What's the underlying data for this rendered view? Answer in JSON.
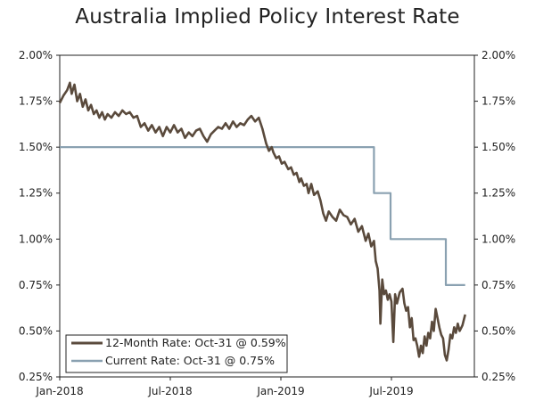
{
  "chart_data": {
    "type": "line",
    "title": "Australia Implied Policy Interest Rate",
    "xlabel": "",
    "ylabel": "",
    "ylim": [
      0.25,
      2.0
    ],
    "y_ticks": [
      "0.25%",
      "0.50%",
      "0.75%",
      "1.00%",
      "1.25%",
      "1.50%",
      "1.75%",
      "2.00%"
    ],
    "y_tick_values": [
      0.25,
      0.5,
      0.75,
      1.0,
      1.25,
      1.5,
      1.75,
      2.0
    ],
    "x_range_months": [
      0,
      22.5
    ],
    "x_ticks": [
      {
        "label": "Jan-2018",
        "month": 0
      },
      {
        "label": "Jul-2018",
        "month": 6
      },
      {
        "label": "Jan-2019",
        "month": 12
      },
      {
        "label": "Jul-2019",
        "month": 18
      }
    ],
    "legend_position": "bottom-left",
    "series": [
      {
        "name": "12-Month Rate: Oct-31 @ 0.59%",
        "color": "#5a4a3c",
        "points": [
          [
            0.0,
            1.74
          ],
          [
            0.2,
            1.78
          ],
          [
            0.4,
            1.81
          ],
          [
            0.55,
            1.85
          ],
          [
            0.65,
            1.79
          ],
          [
            0.8,
            1.84
          ],
          [
            0.95,
            1.75
          ],
          [
            1.1,
            1.79
          ],
          [
            1.25,
            1.72
          ],
          [
            1.4,
            1.76
          ],
          [
            1.55,
            1.7
          ],
          [
            1.7,
            1.73
          ],
          [
            1.85,
            1.68
          ],
          [
            2.0,
            1.7
          ],
          [
            2.15,
            1.66
          ],
          [
            2.3,
            1.69
          ],
          [
            2.45,
            1.65
          ],
          [
            2.6,
            1.68
          ],
          [
            2.8,
            1.66
          ],
          [
            3.0,
            1.69
          ],
          [
            3.2,
            1.67
          ],
          [
            3.4,
            1.7
          ],
          [
            3.6,
            1.68
          ],
          [
            3.8,
            1.69
          ],
          [
            4.0,
            1.66
          ],
          [
            4.2,
            1.67
          ],
          [
            4.4,
            1.61
          ],
          [
            4.6,
            1.63
          ],
          [
            4.8,
            1.59
          ],
          [
            5.0,
            1.62
          ],
          [
            5.2,
            1.58
          ],
          [
            5.4,
            1.61
          ],
          [
            5.6,
            1.56
          ],
          [
            5.8,
            1.61
          ],
          [
            6.0,
            1.58
          ],
          [
            6.2,
            1.62
          ],
          [
            6.4,
            1.58
          ],
          [
            6.6,
            1.6
          ],
          [
            6.8,
            1.55
          ],
          [
            7.0,
            1.58
          ],
          [
            7.2,
            1.56
          ],
          [
            7.4,
            1.59
          ],
          [
            7.6,
            1.6
          ],
          [
            7.8,
            1.56
          ],
          [
            8.0,
            1.53
          ],
          [
            8.2,
            1.57
          ],
          [
            8.4,
            1.59
          ],
          [
            8.6,
            1.61
          ],
          [
            8.8,
            1.6
          ],
          [
            9.0,
            1.63
          ],
          [
            9.2,
            1.6
          ],
          [
            9.4,
            1.64
          ],
          [
            9.6,
            1.61
          ],
          [
            9.8,
            1.63
          ],
          [
            10.0,
            1.62
          ],
          [
            10.2,
            1.65
          ],
          [
            10.4,
            1.67
          ],
          [
            10.6,
            1.64
          ],
          [
            10.8,
            1.66
          ],
          [
            11.0,
            1.6
          ],
          [
            11.1,
            1.56
          ],
          [
            11.2,
            1.52
          ],
          [
            11.35,
            1.48
          ],
          [
            11.5,
            1.5
          ],
          [
            11.6,
            1.47
          ],
          [
            11.75,
            1.44
          ],
          [
            11.9,
            1.45
          ],
          [
            12.05,
            1.41
          ],
          [
            12.2,
            1.42
          ],
          [
            12.4,
            1.38
          ],
          [
            12.55,
            1.39
          ],
          [
            12.7,
            1.35
          ],
          [
            12.85,
            1.36
          ],
          [
            13.0,
            1.31
          ],
          [
            13.1,
            1.33
          ],
          [
            13.25,
            1.29
          ],
          [
            13.4,
            1.3
          ],
          [
            13.5,
            1.25
          ],
          [
            13.65,
            1.3
          ],
          [
            13.8,
            1.24
          ],
          [
            14.0,
            1.26
          ],
          [
            14.15,
            1.21
          ],
          [
            14.3,
            1.14
          ],
          [
            14.45,
            1.1
          ],
          [
            14.6,
            1.15
          ],
          [
            14.8,
            1.12
          ],
          [
            15.0,
            1.1
          ],
          [
            15.2,
            1.16
          ],
          [
            15.4,
            1.13
          ],
          [
            15.6,
            1.12
          ],
          [
            15.8,
            1.08
          ],
          [
            16.0,
            1.11
          ],
          [
            16.2,
            1.04
          ],
          [
            16.4,
            1.07
          ],
          [
            16.6,
            0.99
          ],
          [
            16.75,
            1.03
          ],
          [
            16.9,
            0.96
          ],
          [
            17.05,
            0.99
          ],
          [
            17.15,
            0.88
          ],
          [
            17.25,
            0.84
          ],
          [
            17.35,
            0.72
          ],
          [
            17.4,
            0.54
          ],
          [
            17.5,
            0.78
          ],
          [
            17.6,
            0.7
          ],
          [
            17.7,
            0.72
          ],
          [
            17.8,
            0.67
          ],
          [
            17.9,
            0.7
          ],
          [
            18.0,
            0.66
          ],
          [
            18.1,
            0.44
          ],
          [
            18.2,
            0.7
          ],
          [
            18.3,
            0.65
          ],
          [
            18.45,
            0.71
          ],
          [
            18.6,
            0.73
          ],
          [
            18.7,
            0.65
          ],
          [
            18.8,
            0.61
          ],
          [
            18.9,
            0.63
          ],
          [
            19.0,
            0.52
          ],
          [
            19.1,
            0.57
          ],
          [
            19.2,
            0.45
          ],
          [
            19.3,
            0.46
          ],
          [
            19.4,
            0.42
          ],
          [
            19.5,
            0.36
          ],
          [
            19.6,
            0.42
          ],
          [
            19.7,
            0.38
          ],
          [
            19.8,
            0.47
          ],
          [
            19.9,
            0.42
          ],
          [
            20.0,
            0.49
          ],
          [
            20.1,
            0.46
          ],
          [
            20.2,
            0.55
          ],
          [
            20.3,
            0.5
          ],
          [
            20.4,
            0.62
          ],
          [
            20.5,
            0.57
          ],
          [
            20.6,
            0.52
          ],
          [
            20.7,
            0.48
          ],
          [
            20.8,
            0.46
          ],
          [
            20.9,
            0.37
          ],
          [
            21.0,
            0.34
          ],
          [
            21.1,
            0.4
          ],
          [
            21.2,
            0.48
          ],
          [
            21.3,
            0.46
          ],
          [
            21.4,
            0.52
          ],
          [
            21.5,
            0.49
          ],
          [
            21.6,
            0.54
          ],
          [
            21.7,
            0.5
          ],
          [
            21.85,
            0.53
          ],
          [
            22.0,
            0.59
          ]
        ]
      },
      {
        "name": "Current Rate: Oct-31 @ 0.75%",
        "color": "#8aa1b1",
        "points": [
          [
            0.0,
            1.5
          ],
          [
            17.05,
            1.5
          ],
          [
            17.05,
            1.25
          ],
          [
            17.95,
            1.25
          ],
          [
            17.95,
            1.0
          ],
          [
            20.95,
            1.0
          ],
          [
            20.95,
            0.75
          ],
          [
            22.0,
            0.75
          ]
        ]
      }
    ]
  }
}
